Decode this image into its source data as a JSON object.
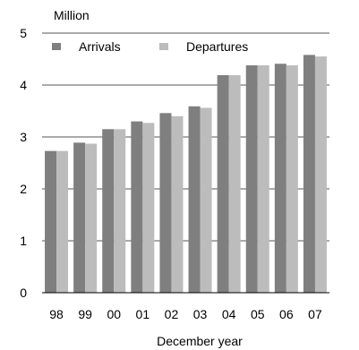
{
  "chart_data": {
    "type": "bar",
    "unit_label": "Million",
    "xlabel": "December year",
    "ylabel": "",
    "ylim": [
      0,
      5
    ],
    "yticks": [
      0,
      1,
      2,
      3,
      4,
      5
    ],
    "grid": "horizontal",
    "legend_position": "top-left",
    "categories": [
      "98",
      "99",
      "00",
      "01",
      "02",
      "03",
      "04",
      "05",
      "06",
      "07"
    ],
    "series": [
      {
        "name": "Arrivals",
        "color": "#7f7f7f",
        "values": [
          2.73,
          2.89,
          3.15,
          3.3,
          3.46,
          3.59,
          4.19,
          4.38,
          4.41,
          4.58
        ]
      },
      {
        "name": "Departures",
        "color": "#bcbcbc",
        "values": [
          2.73,
          2.87,
          3.15,
          3.27,
          3.4,
          3.56,
          4.19,
          4.38,
          4.38,
          4.55
        ]
      }
    ]
  }
}
